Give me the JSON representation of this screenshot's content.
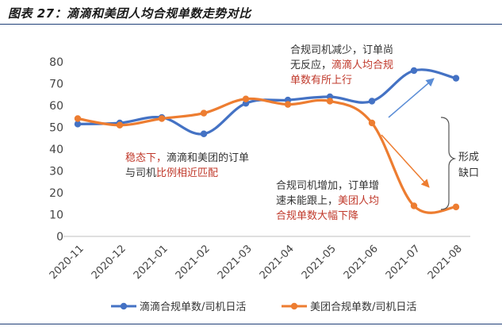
{
  "figure": {
    "title": "图表 27：滴滴和美团人均合规单数走势对比"
  },
  "chart_data": {
    "type": "line",
    "categories": [
      "2020-11",
      "2020-12",
      "2021-01",
      "2021-02",
      "2021-03",
      "2021-04",
      "2021-05",
      "2021-06",
      "2021-07",
      "2021-08"
    ],
    "ylim": [
      0,
      80
    ],
    "yticks": [
      0,
      10,
      20,
      30,
      40,
      50,
      60,
      70,
      80
    ],
    "grid": false,
    "legend_position": "bottom",
    "series": [
      {
        "name": "滴滴合规单数/司机日活",
        "color": "#4472C4",
        "values": [
          51.5,
          52,
          54.5,
          47,
          61,
          62.5,
          64,
          62,
          76,
          72.5
        ]
      },
      {
        "name": "美团合规单数/司机日活",
        "color": "#ED7D31",
        "values": [
          54,
          51,
          54,
          56.5,
          63,
          60.5,
          62,
          52,
          14,
          13.5
        ]
      }
    ],
    "annotations": {
      "top_right": {
        "lines": [
          [
            {
              "text": "合规司机减少，订单尚",
              "color": "#333333"
            }
          ],
          [
            {
              "text": "无反应，",
              "color": "#333333"
            },
            {
              "text": "滴滴人均合规",
              "color": "#C0392B"
            }
          ],
          [
            {
              "text": "单数有所上行",
              "color": "#C0392B"
            }
          ]
        ]
      },
      "left": {
        "lines": [
          [
            {
              "text": "稳态下，",
              "color": "#C0392B"
            },
            {
              "text": "滴滴和美团的订单",
              "color": "#333333"
            }
          ],
          [
            {
              "text": "与司机",
              "color": "#333333"
            },
            {
              "text": "比例相近匹配",
              "color": "#C0392B"
            }
          ]
        ]
      },
      "bottom_right": {
        "lines": [
          [
            {
              "text": "合规司机增加，订单增",
              "color": "#333333"
            }
          ],
          [
            {
              "text": "速未能跟上，",
              "color": "#333333"
            },
            {
              "text": "美团人均",
              "color": "#C0392B"
            }
          ],
          [
            {
              "text": "合规单数大幅下降",
              "color": "#C0392B"
            }
          ]
        ]
      },
      "gap": {
        "lines": [
          "形成",
          "缺口"
        ]
      }
    }
  }
}
